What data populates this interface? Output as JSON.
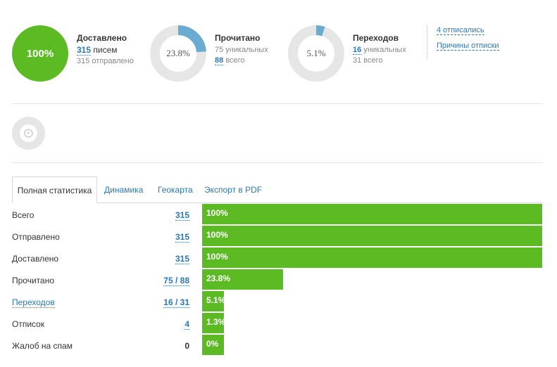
{
  "summary": {
    "delivered": {
      "percent": "100%",
      "title": "Доставлено",
      "count": "315",
      "count_unit": "писем",
      "sent_line": "315 отправлено",
      "color": "#5cbb22"
    },
    "read": {
      "percent_label": "23.8%",
      "percent_value": 23.8,
      "title": "Прочитано",
      "unique_line": "75 уникальных",
      "total": "88",
      "total_unit": "всего",
      "color": "#6aabd2"
    },
    "clicks": {
      "percent_label": "5.1%",
      "percent_value": 5.1,
      "title": "Переходов",
      "unique": "16",
      "unique_unit": "уникальных",
      "total_line": "31 всего",
      "color": "#6aabd2"
    },
    "unsub": {
      "link": "4 отписались",
      "reasons_link": "Причины отписки"
    }
  },
  "tabs": [
    {
      "label": "Полная статистика",
      "active": true
    },
    {
      "label": "Динамика",
      "active": false
    },
    {
      "label": "Геокарта",
      "active": false
    },
    {
      "label": "Экспорт в PDF",
      "active": false
    }
  ],
  "rows": [
    {
      "label": "Всего",
      "value": "315",
      "percent_label": "100%",
      "percent": 100
    },
    {
      "label": "Отправлено",
      "value": "315",
      "percent_label": "100%",
      "percent": 100
    },
    {
      "label": "Доставлено",
      "value": "315",
      "percent_label": "100%",
      "percent": 100
    },
    {
      "label": "Прочитано",
      "value": "75 / 88",
      "percent_label": "23.8%",
      "percent": 23.8
    },
    {
      "label": "Переходов",
      "value": "16 / 31",
      "percent_label": "5.1%",
      "percent": 5.1
    },
    {
      "label": "Отписок",
      "value": "4",
      "percent_label": "1.3%",
      "percent": 1.3
    },
    {
      "label": "Жалоб на спам",
      "value": "0",
      "percent_label": "0%",
      "percent": 0
    }
  ],
  "colors": {
    "bar": "#5cbb22",
    "ring_bg": "#e6e6e6",
    "link": "#2a78b4"
  },
  "icons": {
    "clock": "clock-icon"
  }
}
